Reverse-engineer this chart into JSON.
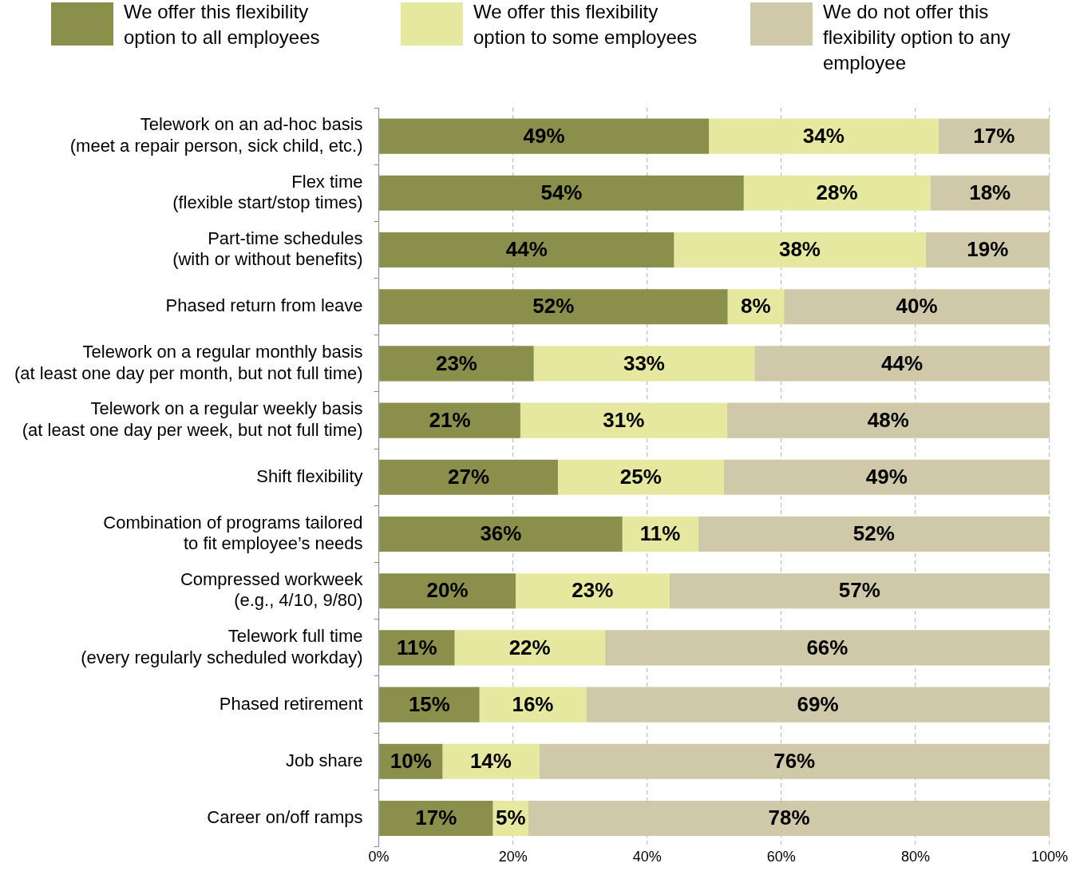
{
  "chart_data": {
    "type": "bar",
    "orientation": "horizontal",
    "stacked": true,
    "categories": [
      "Telework on an ad-hoc basis\n(meet a repair person, sick child, etc.)",
      "Flex time\n(flexible start/stop times)",
      "Part-time schedules\n(with or without benefits)",
      "Phased return from leave",
      "Telework on a regular monthly basis\n(at least one day per month, but not full time)",
      "Telework on a regular weekly basis\n(at least one day per week, but not full time)",
      "Shift flexibility",
      "Combination of programs tailored\nto fit employee’s needs",
      "Compressed workweek\n(e.g., 4/10, 9/80)",
      "Telework full time\n(every regularly scheduled workday)",
      "Phased retirement",
      "Job share",
      "Career on/off ramps"
    ],
    "series": [
      {
        "name": "We offer this flexibility option to all employees",
        "color": "#8a8f4b",
        "values": [
          49.2,
          54.4,
          44,
          52,
          23.1,
          21.1,
          26.7,
          36.3,
          20.4,
          11.3,
          15,
          9.5,
          17
        ],
        "value_labels": [
          "49%",
          "54%",
          "44%",
          "52%",
          "23%",
          "21%",
          "27%",
          "36%",
          "20%",
          "11%",
          "15%",
          "10%",
          "17%"
        ]
      },
      {
        "name": "We offer this flexibility option to some employees",
        "color": "#e6e89f",
        "values": [
          34.2,
          27.8,
          37.5,
          8.4,
          32.9,
          30.8,
          24.7,
          11.3,
          22.9,
          22.4,
          15.9,
          14.4,
          5.3
        ],
        "value_labels": [
          "34%",
          "28%",
          "38%",
          "8%",
          "33%",
          "31%",
          "25%",
          "11%",
          "23%",
          "22%",
          "16%",
          "14%",
          "5%"
        ]
      },
      {
        "name": "We do not offer this flexibility option to any employee",
        "color": "#cfc9a9",
        "values": [
          16.6,
          17.8,
          18.5,
          39.6,
          44,
          48.1,
          48.6,
          52.4,
          56.7,
          66.3,
          69.1,
          76.1,
          77.7
        ],
        "value_labels": [
          "17%",
          "18%",
          "19%",
          "40%",
          "44%",
          "48%",
          "49%",
          "52%",
          "57%",
          "66%",
          "69%",
          "76%",
          "78%"
        ]
      }
    ],
    "xlim": [
      0,
      100
    ],
    "xticks": [
      {
        "value": 0,
        "label": "0%"
      },
      {
        "value": 20,
        "label": "20%"
      },
      {
        "value": 40,
        "label": "40%"
      },
      {
        "value": 60,
        "label": "60%"
      },
      {
        "value": 80,
        "label": "80%"
      },
      {
        "value": 100,
        "label": "100%"
      }
    ],
    "grid": "x",
    "legend": "top"
  }
}
